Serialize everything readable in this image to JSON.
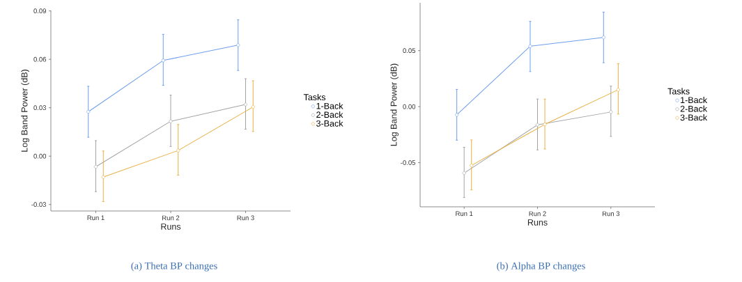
{
  "chart_data": [
    {
      "type": "line",
      "title": "(a) Theta BP changes",
      "xlabel": "Runs",
      "ylabel": "Log Band Power (dB)",
      "legend_title": "Tasks",
      "legend": "right",
      "marker": "circle",
      "line_style": "solid",
      "categories": [
        "Run 1",
        "Run 2",
        "Run 3"
      ],
      "series": [
        {
          "name": "1-Back",
          "color": "#6d9eeb",
          "values": [
            0.0275,
            0.0593,
            0.0688
          ],
          "errors": [
            [
              0.0117,
              0.0433
            ],
            [
              0.0439,
              0.0755
            ],
            [
              0.0531,
              0.0845
            ]
          ]
        },
        {
          "name": "2-Back",
          "color": "#a3a3a3",
          "values": [
            -0.0066,
            0.0216,
            0.032
          ],
          "errors": [
            [
              -0.022,
              0.0096
            ],
            [
              0.006,
              0.0378
            ],
            [
              0.0167,
              0.048
            ]
          ]
        },
        {
          "name": "3-Back",
          "color": "#e9b043",
          "values": [
            -0.013,
            0.0035,
            0.0305
          ],
          "errors": [
            [
              -0.0282,
              0.0032
            ],
            [
              -0.0118,
              0.0196
            ],
            [
              0.0153,
              0.0467
            ]
          ]
        }
      ],
      "ylim": [
        -0.034,
        0.0903
      ],
      "yticks": [
        {
          "value": -0.03,
          "label": "-0.03"
        },
        {
          "value": 0,
          "label": "0.00"
        },
        {
          "value": 0.03,
          "label": "0.03"
        },
        {
          "value": 0.06,
          "label": "0.06"
        },
        {
          "value": 0.09,
          "label": "0.09"
        }
      ]
    },
    {
      "type": "line",
      "title": "(b) Alpha BP changes",
      "xlabel": "Runs",
      "ylabel": "Log Band Power (dB)",
      "legend_title": "Tasks",
      "legend": "right",
      "marker": "circle",
      "line_style": "solid",
      "categories": [
        "Run 1",
        "Run 2",
        "Run 3"
      ],
      "series": [
        {
          "name": "1-Back",
          "color": "#6d9eeb",
          "values": [
            -0.0073,
            0.0539,
            0.0618
          ],
          "errors": [
            [
              -0.0299,
              0.0154
            ],
            [
              0.0313,
              0.0761
            ],
            [
              0.0392,
              0.0844
            ]
          ]
        },
        {
          "name": "2-Back",
          "color": "#a3a3a3",
          "values": [
            -0.0593,
            -0.0162,
            -0.0048
          ],
          "errors": [
            [
              -0.0811,
              -0.0363
            ],
            [
              -0.0386,
              0.0068
            ],
            [
              -0.0266,
              0.0183
            ]
          ]
        },
        {
          "name": "3-Back",
          "color": "#e9b043",
          "values": [
            -0.0525,
            -0.0158,
            0.0151
          ],
          "errors": [
            [
              -0.0743,
              -0.0297
            ],
            [
              -0.0378,
              0.0068
            ],
            [
              -0.0066,
              0.0384
            ]
          ]
        }
      ],
      "ylim": [
        -0.0894,
        0.0927
      ],
      "yticks": [
        {
          "value": -0.05,
          "label": "-0.05"
        },
        {
          "value": 0,
          "label": "0.00"
        },
        {
          "value": 0.05,
          "label": "0.05"
        }
      ]
    }
  ]
}
